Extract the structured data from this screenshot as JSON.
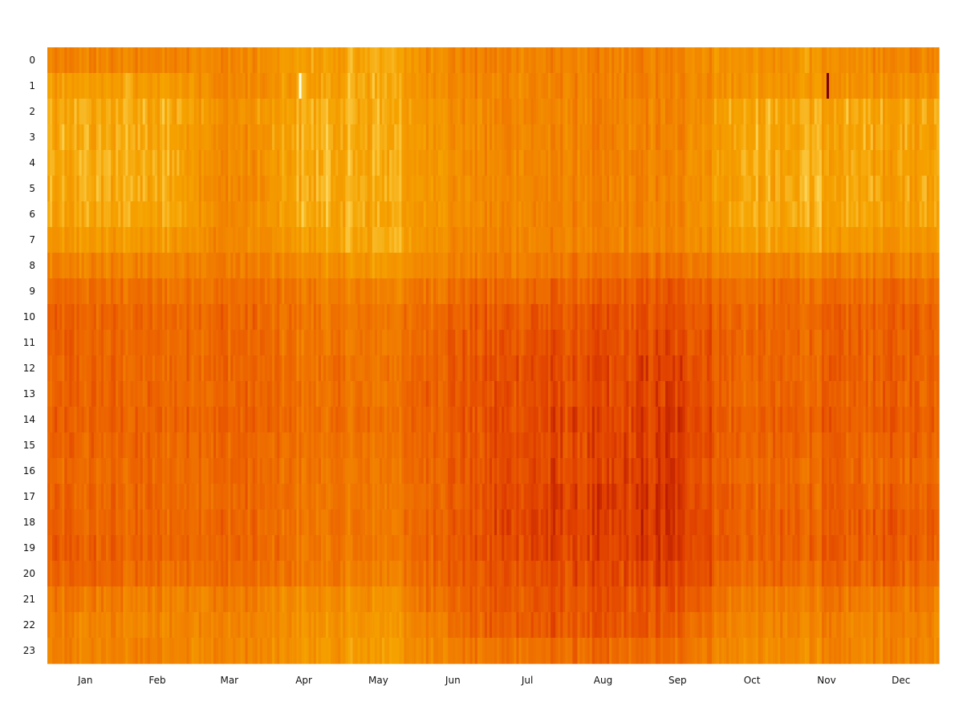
{
  "chart_data": {
    "type": "heatmap",
    "title": "",
    "xlabel": "",
    "ylabel": "",
    "y_categories": [
      "0",
      "1",
      "2",
      "3",
      "4",
      "5",
      "6",
      "7",
      "8",
      "9",
      "10",
      "11",
      "12",
      "13",
      "14",
      "15",
      "16",
      "17",
      "18",
      "19",
      "20",
      "21",
      "22",
      "23"
    ],
    "x_tick_labels": [
      "Jan",
      "Feb",
      "Mar",
      "Apr",
      "May",
      "Jun",
      "Jul",
      "Aug",
      "Sep",
      "Oct",
      "Nov",
      "Dec"
    ],
    "x_range": [
      1,
      365
    ],
    "legend": "none",
    "grid": false,
    "colors": {
      "low": "#ffffe8",
      "light": "#f5a300",
      "mid": "#f28500",
      "high": "#ec6200",
      "peak": "#e03f00",
      "extreme": "#7a0000"
    },
    "seasonal_profile_note_free": true,
    "hourly_base_by_month": [
      [
        0.5,
        0.35,
        0.3,
        0.3,
        0.3,
        0.3,
        0.32,
        0.38,
        0.5,
        0.62,
        0.66,
        0.66,
        0.66,
        0.66,
        0.68,
        0.66,
        0.64,
        0.65,
        0.66,
        0.68,
        0.66,
        0.55,
        0.5,
        0.5
      ],
      [
        0.5,
        0.35,
        0.3,
        0.3,
        0.3,
        0.3,
        0.32,
        0.38,
        0.5,
        0.6,
        0.64,
        0.64,
        0.64,
        0.64,
        0.66,
        0.65,
        0.64,
        0.64,
        0.64,
        0.66,
        0.62,
        0.52,
        0.5,
        0.5
      ],
      [
        0.5,
        0.5,
        0.45,
        0.48,
        0.48,
        0.5,
        0.48,
        0.5,
        0.55,
        0.62,
        0.66,
        0.66,
        0.66,
        0.66,
        0.68,
        0.66,
        0.65,
        0.65,
        0.66,
        0.66,
        0.64,
        0.55,
        0.52,
        0.5
      ],
      [
        0.35,
        0.35,
        0.3,
        0.3,
        0.3,
        0.3,
        0.3,
        0.35,
        0.45,
        0.55,
        0.58,
        0.58,
        0.6,
        0.6,
        0.62,
        0.6,
        0.58,
        0.58,
        0.58,
        0.58,
        0.56,
        0.45,
        0.42,
        0.4
      ],
      [
        0.3,
        0.3,
        0.3,
        0.3,
        0.3,
        0.3,
        0.3,
        0.3,
        0.4,
        0.5,
        0.55,
        0.56,
        0.58,
        0.58,
        0.6,
        0.58,
        0.56,
        0.56,
        0.56,
        0.55,
        0.52,
        0.42,
        0.38,
        0.35
      ],
      [
        0.5,
        0.5,
        0.45,
        0.45,
        0.45,
        0.45,
        0.45,
        0.48,
        0.52,
        0.62,
        0.68,
        0.7,
        0.72,
        0.72,
        0.72,
        0.7,
        0.7,
        0.7,
        0.72,
        0.72,
        0.7,
        0.66,
        0.62,
        0.55
      ],
      [
        0.5,
        0.5,
        0.5,
        0.5,
        0.5,
        0.5,
        0.5,
        0.5,
        0.55,
        0.66,
        0.72,
        0.74,
        0.76,
        0.76,
        0.78,
        0.78,
        0.78,
        0.8,
        0.8,
        0.8,
        0.76,
        0.72,
        0.72,
        0.6
      ],
      [
        0.5,
        0.5,
        0.5,
        0.5,
        0.5,
        0.5,
        0.5,
        0.5,
        0.58,
        0.68,
        0.72,
        0.74,
        0.76,
        0.76,
        0.78,
        0.78,
        0.78,
        0.8,
        0.8,
        0.78,
        0.76,
        0.72,
        0.72,
        0.62
      ],
      [
        0.5,
        0.5,
        0.5,
        0.5,
        0.5,
        0.5,
        0.5,
        0.5,
        0.6,
        0.72,
        0.76,
        0.78,
        0.8,
        0.8,
        0.82,
        0.82,
        0.82,
        0.84,
        0.84,
        0.84,
        0.8,
        0.74,
        0.7,
        0.62
      ],
      [
        0.4,
        0.4,
        0.3,
        0.3,
        0.3,
        0.3,
        0.3,
        0.35,
        0.5,
        0.6,
        0.64,
        0.64,
        0.64,
        0.64,
        0.66,
        0.64,
        0.62,
        0.64,
        0.66,
        0.66,
        0.62,
        0.52,
        0.48,
        0.45
      ],
      [
        0.4,
        0.4,
        0.3,
        0.3,
        0.3,
        0.3,
        0.3,
        0.35,
        0.5,
        0.62,
        0.66,
        0.66,
        0.66,
        0.66,
        0.68,
        0.66,
        0.64,
        0.66,
        0.68,
        0.68,
        0.64,
        0.55,
        0.5,
        0.48
      ],
      [
        0.5,
        0.45,
        0.35,
        0.35,
        0.35,
        0.35,
        0.35,
        0.42,
        0.52,
        0.64,
        0.68,
        0.68,
        0.68,
        0.68,
        0.7,
        0.68,
        0.66,
        0.68,
        0.7,
        0.7,
        0.66,
        0.56,
        0.52,
        0.5
      ]
    ],
    "extreme_cells": [
      {
        "day": 104,
        "hour": 1,
        "value": 0.0
      },
      {
        "day": 320,
        "hour": 1,
        "value": 1.0
      }
    ]
  }
}
